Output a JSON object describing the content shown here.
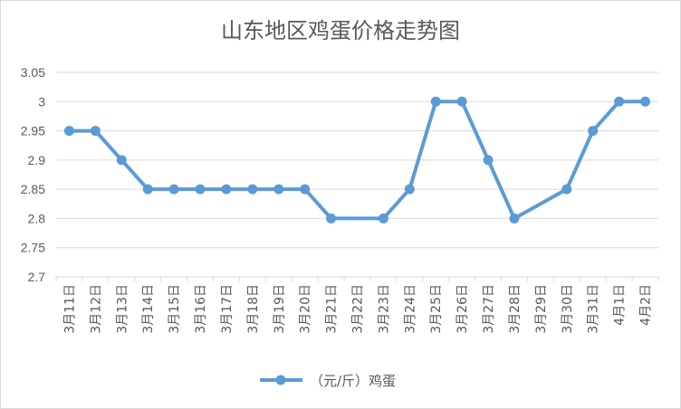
{
  "chart_data": {
    "type": "line",
    "title": "山东地区鸡蛋价格走势图",
    "xlabel": "",
    "ylabel": "",
    "categories": [
      "3月11日",
      "3月12日",
      "3月13日",
      "3月14日",
      "3月15日",
      "3月16日",
      "3月17日",
      "3月18日",
      "3月19日",
      "3月20日",
      "3月21日",
      "3月22日",
      "3月23日",
      "3月24日",
      "3月25日",
      "3月26日",
      "3月27日",
      "3月28日",
      "3月29日",
      "3月30日",
      "3月31日",
      "4月1日",
      "4月2日"
    ],
    "series": [
      {
        "name": "（元/斤）鸡蛋",
        "color": "#5b9bd5",
        "values": [
          2.95,
          2.95,
          2.9,
          2.85,
          2.85,
          2.85,
          2.85,
          2.85,
          2.85,
          2.85,
          2.8,
          null,
          2.8,
          2.85,
          3.0,
          3.0,
          2.9,
          2.8,
          null,
          2.85,
          2.95,
          3.0,
          3.0
        ]
      }
    ],
    "ylim": [
      2.7,
      3.05
    ],
    "yticks": [
      "2.7",
      "2.75",
      "2.8",
      "2.85",
      "2.9",
      "2.95",
      "3",
      "3.05"
    ],
    "grid": true,
    "legend_position": "bottom",
    "gaps": "connected"
  }
}
